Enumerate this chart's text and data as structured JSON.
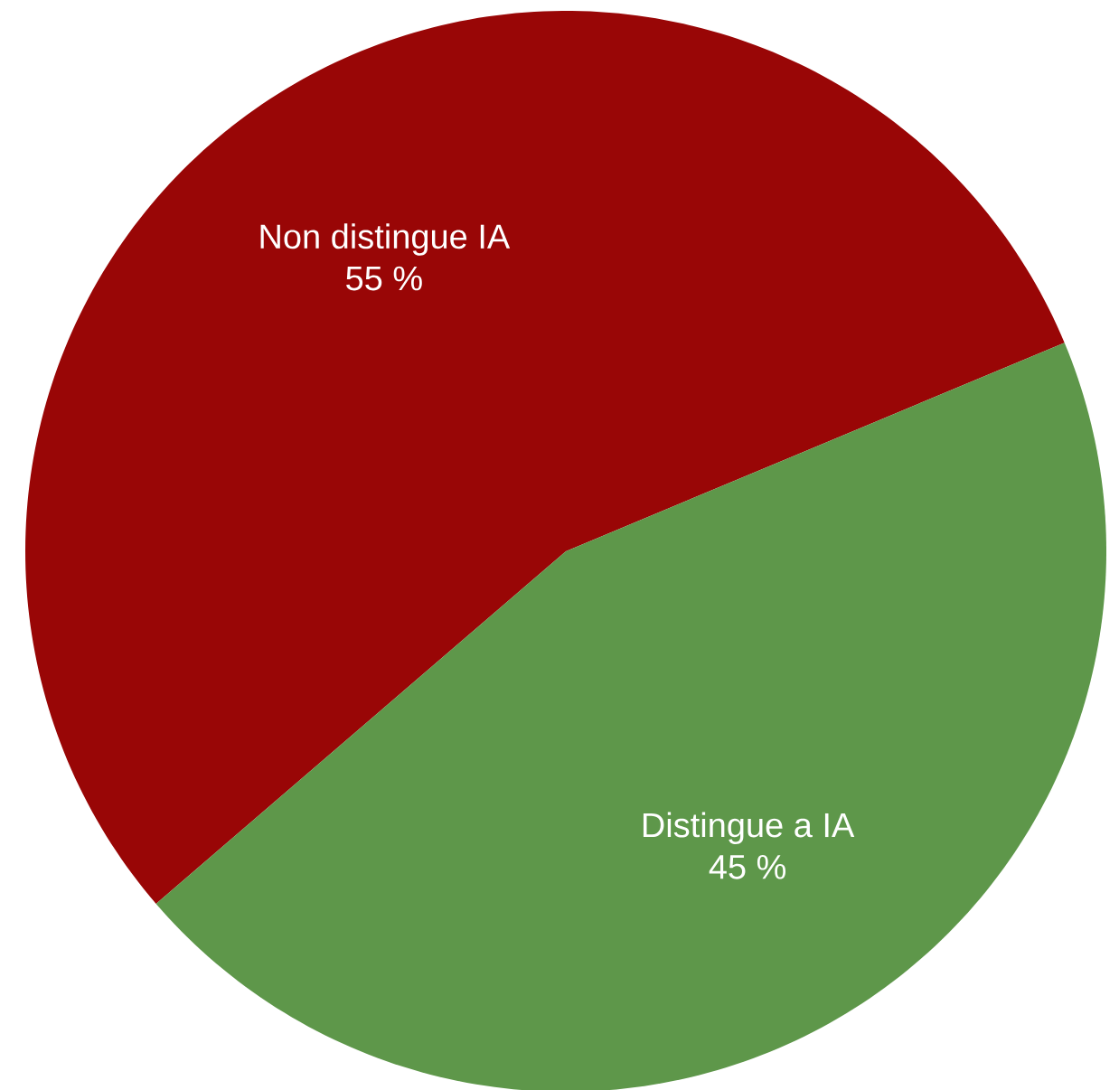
{
  "chart_data": {
    "type": "pie",
    "categories": [
      "Non distingue IA",
      "Distingue a IA"
    ],
    "values": [
      55,
      45
    ],
    "value_labels": [
      "55 %",
      "45 %"
    ],
    "colors": [
      "#990606",
      "#5e974a"
    ]
  }
}
